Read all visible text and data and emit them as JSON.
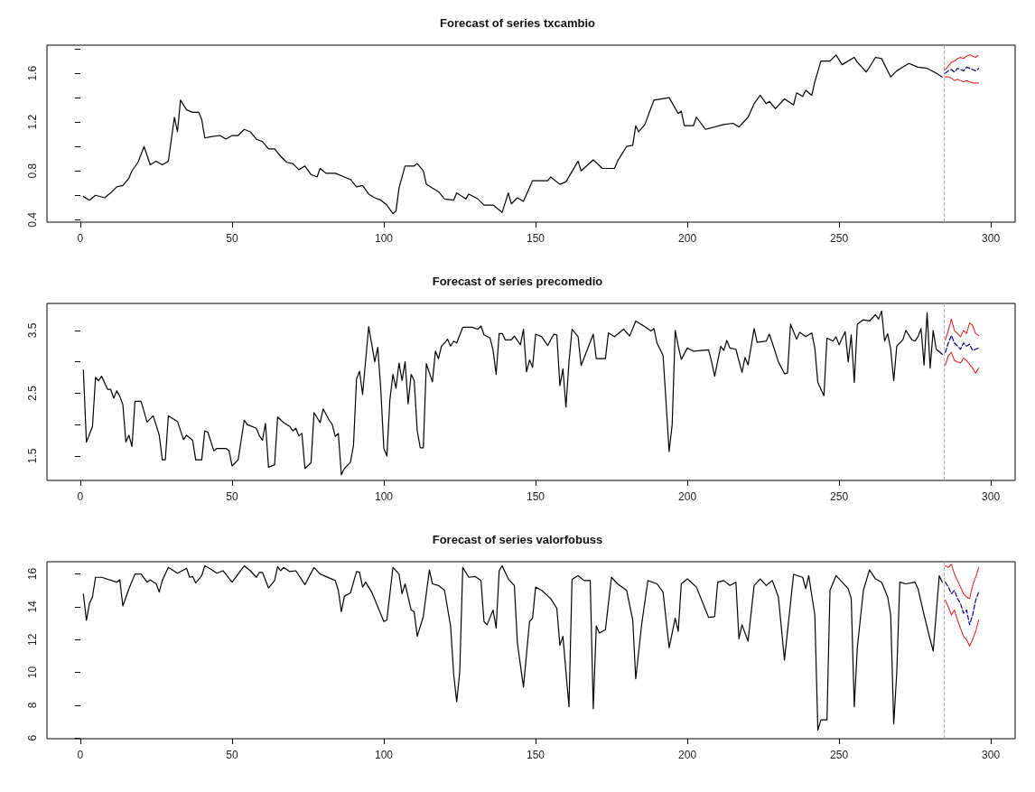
{
  "chart_data": [
    {
      "type": "line",
      "title": "Forecast of series txcambio",
      "marker": "none",
      "xlim": [
        -11,
        308
      ],
      "xticks": [
        0,
        50,
        100,
        150,
        200,
        250,
        300
      ],
      "ylim": [
        0.38,
        1.83
      ],
      "yticks": [
        0.4,
        {
          "value": 0.6,
          "label": null
        },
        0.8,
        {
          "value": 1.0,
          "label": null
        },
        1.2,
        {
          "value": 1.4,
          "label": null
        },
        1.6,
        {
          "value": 1.8,
          "label": null
        }
      ],
      "ref_lines": [
        {
          "axis": "x",
          "value": 284.5,
          "color": "#b0b0b0",
          "line_style": "dashed"
        }
      ],
      "series": [
        {
          "color": "#000000",
          "line_style": "solid",
          "x": [
            1,
            3,
            5,
            8,
            10,
            12,
            14,
            16,
            17,
            19,
            21,
            23,
            25,
            27,
            29,
            31,
            32,
            33,
            35,
            37,
            39,
            40,
            41,
            43,
            46,
            48,
            50,
            52,
            54,
            56,
            58,
            60,
            62,
            64,
            66,
            68,
            70,
            72,
            74,
            76,
            78,
            79,
            81,
            84,
            87,
            89,
            91,
            93,
            95,
            97,
            99,
            101,
            103,
            104,
            105,
            107,
            110,
            111,
            113,
            114,
            116,
            118,
            120,
            123,
            124,
            127,
            128,
            131,
            133,
            136,
            139,
            141,
            142,
            144,
            146,
            149,
            154,
            155,
            158,
            160,
            164,
            165,
            169,
            172,
            176,
            177,
            180,
            182,
            183,
            184,
            186,
            189,
            194,
            197,
            198,
            199,
            202,
            203,
            206,
            212,
            215,
            217,
            220,
            222,
            224,
            226,
            227,
            229,
            232,
            235,
            236,
            238,
            239,
            241,
            242,
            244,
            247,
            249,
            251,
            255,
            256,
            259,
            262,
            264,
            267,
            269,
            271,
            273,
            276,
            279,
            282,
            284
          ],
          "values": [
            0.59,
            0.56,
            0.6,
            0.58,
            0.62,
            0.67,
            0.68,
            0.74,
            0.8,
            0.87,
            1.0,
            0.85,
            0.88,
            0.85,
            0.88,
            1.24,
            1.12,
            1.38,
            1.3,
            1.28,
            1.28,
            1.22,
            1.07,
            1.08,
            1.09,
            1.06,
            1.09,
            1.09,
            1.14,
            1.12,
            1.06,
            1.04,
            0.98,
            0.98,
            0.92,
            0.87,
            0.86,
            0.81,
            0.84,
            0.77,
            0.75,
            0.82,
            0.78,
            0.78,
            0.75,
            0.73,
            0.67,
            0.68,
            0.61,
            0.58,
            0.56,
            0.52,
            0.45,
            0.47,
            0.66,
            0.84,
            0.84,
            0.86,
            0.8,
            0.69,
            0.66,
            0.63,
            0.57,
            0.56,
            0.62,
            0.57,
            0.61,
            0.57,
            0.52,
            0.52,
            0.46,
            0.62,
            0.53,
            0.58,
            0.55,
            0.72,
            0.72,
            0.75,
            0.69,
            0.71,
            0.88,
            0.8,
            0.89,
            0.82,
            0.82,
            0.88,
            1.0,
            1.01,
            1.17,
            1.12,
            1.18,
            1.38,
            1.4,
            1.27,
            1.29,
            1.17,
            1.17,
            1.24,
            1.14,
            1.18,
            1.19,
            1.16,
            1.24,
            1.35,
            1.42,
            1.35,
            1.37,
            1.31,
            1.39,
            1.34,
            1.44,
            1.41,
            1.46,
            1.42,
            1.53,
            1.7,
            1.7,
            1.75,
            1.67,
            1.73,
            1.69,
            1.61,
            1.73,
            1.72,
            1.57,
            1.62,
            1.65,
            1.68,
            1.65,
            1.64,
            1.6,
            1.57
          ]
        },
        {
          "color": "#00008b",
          "line_style": "dashed",
          "x": [
            285,
            286,
            287,
            288,
            289,
            290,
            291,
            292,
            293,
            294,
            295,
            296
          ],
          "values": [
            1.6,
            1.62,
            1.63,
            1.61,
            1.64,
            1.63,
            1.62,
            1.65,
            1.64,
            1.63,
            1.62,
            1.64
          ]
        },
        {
          "color": "#d62020",
          "line_style": "dotted",
          "x": [
            285,
            286,
            287,
            288,
            289,
            290,
            291,
            292,
            293,
            294,
            295,
            296
          ],
          "values": [
            1.63,
            1.66,
            1.69,
            1.7,
            1.72,
            1.73,
            1.72,
            1.74,
            1.75,
            1.74,
            1.73,
            1.75
          ]
        },
        {
          "color": "#d62020",
          "line_style": "dotted",
          "x": [
            285,
            286,
            287,
            288,
            289,
            290,
            291,
            292,
            293,
            294,
            295,
            296
          ],
          "values": [
            1.57,
            1.57,
            1.56,
            1.54,
            1.55,
            1.54,
            1.53,
            1.54,
            1.53,
            1.52,
            1.52,
            1.52
          ]
        }
      ]
    },
    {
      "type": "line",
      "title": "Forecast of series precomedio",
      "marker": "none",
      "xlim": [
        -11,
        308
      ],
      "xticks": [
        0,
        50,
        100,
        150,
        200,
        250,
        300
      ],
      "ylim": [
        1.11,
        3.93
      ],
      "yticks": [
        1.5,
        {
          "value": 2.0,
          "label": null
        },
        2.5,
        {
          "value": 3.0,
          "label": null
        },
        3.5
      ],
      "ref_lines": [
        {
          "axis": "x",
          "value": 284.5,
          "color": "#b0b0b0",
          "line_style": "dashed"
        }
      ],
      "series": [
        {
          "color": "#000000",
          "line_style": "solid",
          "x": [
            1,
            2,
            4,
            5,
            6,
            7,
            9,
            10,
            11,
            12,
            13,
            14,
            15,
            16,
            17,
            18,
            20,
            22,
            24,
            26,
            27,
            28,
            29,
            32,
            34,
            35,
            37,
            38,
            40,
            41,
            42,
            44,
            45,
            48,
            49,
            50,
            52,
            54,
            55,
            58,
            59,
            60,
            61,
            62,
            64,
            65,
            67,
            69,
            70,
            71,
            72,
            73,
            74,
            76,
            77,
            79,
            80,
            82,
            83,
            84,
            85,
            86,
            87,
            89,
            90,
            91,
            92,
            93,
            95,
            96,
            97,
            98,
            99,
            100,
            101,
            102,
            103,
            104,
            105,
            106,
            107,
            108,
            109,
            110,
            111,
            112,
            113,
            114,
            116,
            117,
            118,
            119,
            120,
            121,
            122,
            123,
            124,
            126,
            129,
            131,
            132,
            133,
            135,
            136,
            137,
            138,
            139,
            140,
            142,
            143,
            145,
            146,
            147,
            148,
            149,
            150,
            152,
            154,
            156,
            157,
            158,
            159,
            160,
            161,
            162,
            164,
            165,
            167,
            169,
            170,
            173,
            174,
            176,
            179,
            181,
            183,
            186,
            188,
            189,
            190,
            192,
            193,
            194,
            195,
            196,
            197,
            198,
            200,
            202,
            207,
            208,
            209,
            211,
            212,
            213,
            214,
            216,
            218,
            219,
            220,
            222,
            223,
            226,
            227,
            228,
            230,
            232,
            233,
            234,
            236,
            237,
            239,
            241,
            242,
            243,
            245,
            246,
            248,
            249,
            250,
            251,
            252,
            253,
            254,
            255,
            256,
            258,
            260,
            262,
            263,
            264,
            265,
            266,
            267,
            268,
            269,
            271,
            272,
            274,
            275,
            276,
            277,
            278,
            279,
            280,
            281,
            282,
            284
          ],
          "values": [
            2.87,
            1.72,
            1.97,
            2.75,
            2.7,
            2.77,
            2.56,
            2.56,
            2.42,
            2.54,
            2.45,
            2.32,
            1.72,
            1.83,
            1.65,
            2.37,
            2.37,
            2.04,
            2.14,
            1.83,
            1.44,
            1.44,
            2.14,
            2.05,
            1.76,
            1.83,
            1.75,
            1.44,
            1.44,
            1.9,
            1.88,
            1.58,
            1.62,
            1.62,
            1.58,
            1.34,
            1.44,
            2.07,
            2.0,
            1.94,
            1.82,
            1.75,
            2.02,
            1.32,
            1.36,
            2.12,
            2.03,
            1.97,
            1.9,
            1.94,
            1.82,
            1.86,
            1.3,
            1.39,
            2.19,
            2.03,
            2.25,
            2.07,
            2.0,
            1.81,
            1.86,
            1.2,
            1.3,
            1.4,
            1.67,
            2.73,
            2.85,
            2.48,
            3.56,
            3.28,
            3.0,
            3.23,
            2.55,
            1.62,
            1.5,
            2.4,
            2.8,
            2.58,
            2.98,
            2.7,
            3.0,
            2.33,
            2.8,
            2.7,
            1.9,
            1.63,
            1.63,
            2.97,
            2.68,
            3.17,
            3.05,
            3.25,
            3.3,
            3.36,
            3.25,
            3.33,
            3.3,
            3.55,
            3.55,
            3.52,
            3.57,
            3.43,
            3.38,
            3.18,
            2.8,
            3.45,
            3.45,
            3.35,
            3.35,
            3.41,
            3.27,
            3.52,
            2.84,
            3.03,
            2.91,
            3.44,
            3.4,
            3.26,
            3.44,
            3.43,
            2.62,
            2.89,
            2.28,
            2.99,
            3.52,
            3.4,
            2.94,
            3.19,
            3.44,
            3.05,
            3.05,
            3.46,
            3.4,
            3.52,
            3.41,
            3.65,
            3.56,
            3.49,
            3.53,
            3.3,
            3.1,
            2.34,
            1.57,
            2.0,
            3.5,
            3.25,
            3.04,
            3.22,
            3.17,
            3.19,
            3.0,
            2.77,
            3.25,
            3.18,
            3.34,
            3.22,
            3.2,
            2.83,
            3.07,
            2.95,
            3.53,
            3.31,
            3.33,
            3.44,
            3.3,
            3.0,
            2.81,
            2.82,
            3.6,
            3.36,
            3.47,
            3.4,
            3.46,
            3.22,
            2.67,
            2.46,
            3.38,
            3.33,
            3.4,
            3.27,
            3.38,
            3.48,
            3.0,
            3.43,
            2.67,
            3.6,
            3.67,
            3.65,
            3.75,
            3.68,
            3.81,
            3.33,
            3.45,
            3.2,
            2.7,
            3.25,
            3.35,
            3.5,
            3.35,
            3.33,
            3.4,
            3.53,
            2.95,
            3.78,
            2.9,
            3.5,
            3.2,
            3.12
          ]
        },
        {
          "color": "#00008b",
          "line_style": "dashed",
          "x": [
            285,
            286,
            287,
            288,
            289,
            290,
            291,
            292,
            293,
            294,
            295,
            296
          ],
          "values": [
            3.15,
            3.3,
            3.42,
            3.3,
            3.25,
            3.2,
            3.3,
            3.25,
            3.28,
            3.18,
            3.2,
            3.22
          ]
        },
        {
          "color": "#d62020",
          "line_style": "dotted",
          "x": [
            285,
            286,
            287,
            288,
            289,
            290,
            291,
            292,
            293,
            294,
            295,
            296
          ],
          "values": [
            3.35,
            3.5,
            3.68,
            3.5,
            3.45,
            3.4,
            3.5,
            3.45,
            3.62,
            3.58,
            3.45,
            3.42
          ]
        },
        {
          "color": "#d62020",
          "line_style": "dotted",
          "x": [
            285,
            286,
            287,
            288,
            289,
            290,
            291,
            292,
            293,
            294,
            295,
            296
          ],
          "values": [
            2.95,
            3.1,
            3.15,
            3.02,
            3.0,
            2.98,
            3.06,
            3.02,
            2.96,
            2.9,
            2.82,
            2.9
          ]
        }
      ]
    },
    {
      "type": "line",
      "title": "Forecast of series valorfobuss",
      "marker": "none",
      "xlim": [
        -11,
        308
      ],
      "xticks": [
        0,
        50,
        100,
        150,
        200,
        250,
        300
      ],
      "ylim": [
        5.95,
        16.75
      ],
      "yticks": [
        6,
        8,
        10,
        12,
        14,
        16
      ],
      "ref_lines": [
        {
          "axis": "x",
          "value": 284.5,
          "color": "#b0b0b0",
          "line_style": "dashed"
        }
      ],
      "series": [
        {
          "color": "#000000",
          "line_style": "solid",
          "x": [
            1,
            2,
            3,
            4,
            5,
            7,
            12,
            13,
            14,
            16,
            18,
            20,
            22,
            23,
            25,
            26,
            27,
            29,
            32,
            35,
            36,
            37,
            38,
            40,
            41,
            43,
            45,
            47,
            50,
            54,
            56,
            58,
            59,
            60,
            62,
            64,
            65,
            66,
            67,
            69,
            71,
            74,
            75,
            77,
            79,
            84,
            85,
            86,
            87,
            89,
            91,
            92,
            93,
            94,
            96,
            98,
            100,
            101,
            103,
            105,
            106,
            107,
            109,
            110,
            111,
            113,
            115,
            116,
            118,
            120,
            122,
            123,
            124,
            125,
            126,
            128,
            130,
            132,
            133,
            134,
            136,
            137,
            138,
            139,
            141,
            143,
            144,
            146,
            148,
            149,
            150,
            152,
            155,
            157,
            158,
            159,
            161,
            162,
            164,
            166,
            168,
            169,
            170,
            171,
            173,
            175,
            177,
            180,
            182,
            183,
            185,
            187,
            190,
            192,
            194,
            196,
            197,
            198,
            200,
            203,
            207,
            209,
            210,
            212,
            214,
            216,
            217,
            218,
            220,
            222,
            224,
            226,
            228,
            230,
            232,
            235,
            238,
            239,
            240,
            242,
            243,
            244,
            246,
            247,
            249,
            251,
            253,
            254,
            255,
            256,
            258,
            260,
            262,
            264,
            266,
            267,
            268,
            269,
            270,
            272,
            275,
            276,
            278,
            280,
            281,
            283,
            284
          ],
          "values": [
            14.77,
            13.17,
            14.2,
            14.6,
            15.8,
            15.8,
            15.5,
            15.65,
            14.05,
            15.1,
            16.0,
            16.0,
            15.5,
            15.65,
            15.4,
            14.9,
            15.6,
            16.4,
            16.05,
            16.35,
            15.8,
            15.85,
            15.45,
            15.9,
            16.5,
            16.3,
            16.05,
            16.2,
            15.5,
            16.5,
            16.2,
            15.8,
            16.1,
            16.1,
            15.15,
            15.6,
            16.45,
            16.2,
            16.4,
            16.15,
            16.2,
            15.35,
            15.7,
            16.4,
            16.0,
            15.6,
            15.0,
            13.7,
            14.65,
            14.85,
            16.15,
            16.1,
            15.2,
            15.5,
            14.9,
            14.0,
            13.1,
            13.2,
            16.4,
            16.0,
            14.8,
            15.4,
            13.8,
            13.7,
            12.2,
            13.4,
            16.25,
            15.4,
            15.3,
            15.0,
            12.8,
            9.9,
            8.2,
            10.0,
            16.4,
            15.8,
            15.85,
            15.6,
            13.1,
            12.9,
            13.8,
            12.7,
            16.2,
            16.5,
            15.7,
            15.3,
            11.8,
            9.1,
            13.1,
            13.3,
            15.2,
            15.0,
            14.5,
            13.9,
            11.66,
            12.2,
            7.9,
            15.68,
            15.9,
            15.6,
            15.6,
            7.78,
            12.83,
            12.4,
            12.6,
            15.8,
            15.4,
            15.0,
            13.2,
            9.6,
            13.0,
            15.6,
            15.4,
            14.9,
            11.5,
            13.3,
            12.5,
            15.4,
            15.7,
            15.2,
            13.35,
            13.4,
            15.5,
            15.6,
            15.3,
            15.5,
            12.05,
            12.9,
            11.9,
            15.3,
            15.7,
            15.3,
            15.6,
            14.6,
            10.75,
            15.98,
            15.8,
            15.1,
            15.9,
            13.5,
            6.48,
            7.1,
            7.1,
            15.0,
            15.9,
            15.5,
            15.1,
            14.5,
            7.9,
            11.5,
            15.0,
            16.25,
            15.7,
            15.5,
            14.6,
            13.5,
            6.85,
            10.0,
            15.5,
            15.4,
            15.5,
            15.1,
            13.5,
            12.0,
            11.3,
            15.9,
            15.5
          ]
        },
        {
          "color": "#00008b",
          "line_style": "dashed",
          "x": [
            285,
            286,
            287,
            288,
            289,
            290,
            291,
            292,
            293,
            294,
            295,
            296
          ],
          "values": [
            15.5,
            15.2,
            14.8,
            15.0,
            14.5,
            14.2,
            13.6,
            13.8,
            12.9,
            13.5,
            14.4,
            14.9
          ]
        },
        {
          "color": "#d62020",
          "line_style": "dotted",
          "x": [
            285,
            286,
            287,
            288,
            289,
            290,
            291,
            292,
            293,
            294,
            295,
            296
          ],
          "values": [
            16.5,
            16.4,
            16.6,
            16.0,
            15.6,
            15.2,
            14.8,
            14.6,
            14.5,
            15.3,
            15.8,
            16.4
          ]
        },
        {
          "color": "#d62020",
          "line_style": "dotted",
          "x": [
            285,
            286,
            287,
            288,
            289,
            290,
            291,
            292,
            293,
            294,
            295,
            296
          ],
          "values": [
            14.4,
            14.0,
            13.5,
            13.8,
            13.2,
            12.7,
            12.2,
            12.0,
            11.6,
            12.0,
            12.5,
            13.2
          ]
        }
      ]
    }
  ]
}
